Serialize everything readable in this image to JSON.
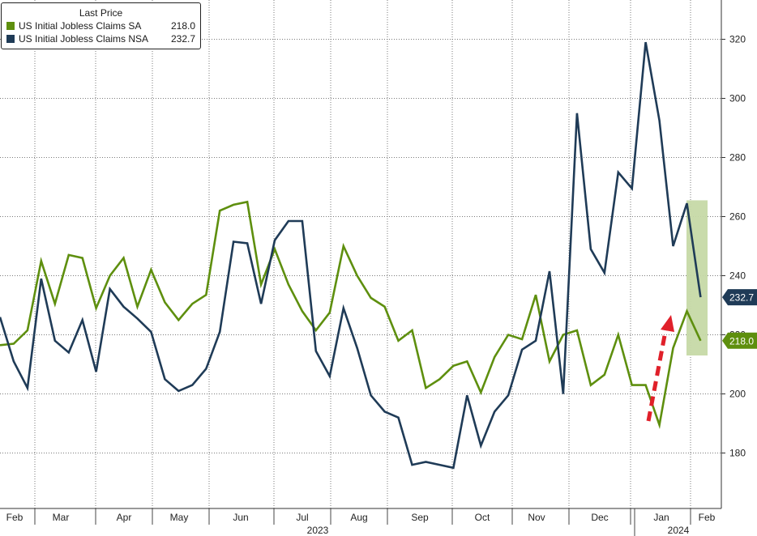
{
  "legend": {
    "title": "Last Price",
    "entries": [
      {
        "name": "US Initial Jobless Claims SA",
        "value": "218.0",
        "color": "#5e8f0e"
      },
      {
        "name": "US Initial Jobless Claims NSA",
        "value": "232.7",
        "color": "#1f3b57"
      }
    ]
  },
  "chart_data": {
    "type": "line",
    "x_unit": "weekly data points, 2023-02 to 2024-02",
    "ylim": [
      160,
      330
    ],
    "y_ticks": [
      180,
      200,
      220,
      240,
      260,
      280,
      300,
      320
    ],
    "x_month_labels": [
      "Feb",
      "Mar",
      "Apr",
      "May",
      "Jun",
      "Jul",
      "Aug",
      "Sep",
      "Oct",
      "Nov",
      "Dec",
      "Jan",
      "Feb"
    ],
    "x_year_labels": [
      "2023",
      "2024"
    ],
    "grid": true,
    "legend_position": "top-left",
    "series": [
      {
        "name": "US Initial Jobless Claims SA",
        "color": "#5e8f0e",
        "last_value_label": "218.0",
        "values": [
          216.5,
          217,
          221.5,
          245,
          230.5,
          247,
          246,
          229,
          240,
          246,
          229.5,
          242,
          231,
          225,
          230.5,
          233.5,
          262,
          264,
          265,
          237,
          249,
          237,
          228,
          221.5,
          227.5,
          250,
          240,
          232.5,
          229.5,
          218,
          221.5,
          202,
          205,
          209.5,
          211,
          200.5,
          212.5,
          220,
          218.5,
          233.5,
          211,
          220,
          221.5,
          203,
          206.5,
          220,
          203,
          203,
          189.5,
          215.5,
          228,
          218
        ]
      },
      {
        "name": "US Initial Jobless Claims NSA",
        "color": "#1f3b57",
        "last_value_label": "232.7",
        "values": [
          226,
          211,
          202,
          239,
          218,
          214,
          225,
          207.5,
          235.5,
          229.5,
          225.5,
          221,
          205,
          201,
          203,
          208.5,
          221,
          251.5,
          251,
          230.5,
          252,
          258.5,
          258.5,
          214.5,
          206,
          229,
          215.5,
          199.5,
          194,
          192,
          176,
          177,
          176,
          175,
          199.5,
          182.5,
          194,
          199.5,
          215,
          218,
          241.5,
          200,
          295,
          249,
          241,
          275,
          269.5,
          319,
          292.5,
          250,
          264.5,
          232.7
        ]
      }
    ],
    "annotations": [
      {
        "type": "shaded-band",
        "color": "#c6d9a6",
        "note": "highlight of latest readings"
      },
      {
        "type": "dashed-arrow",
        "color": "#e0202a",
        "direction": "up"
      }
    ]
  }
}
